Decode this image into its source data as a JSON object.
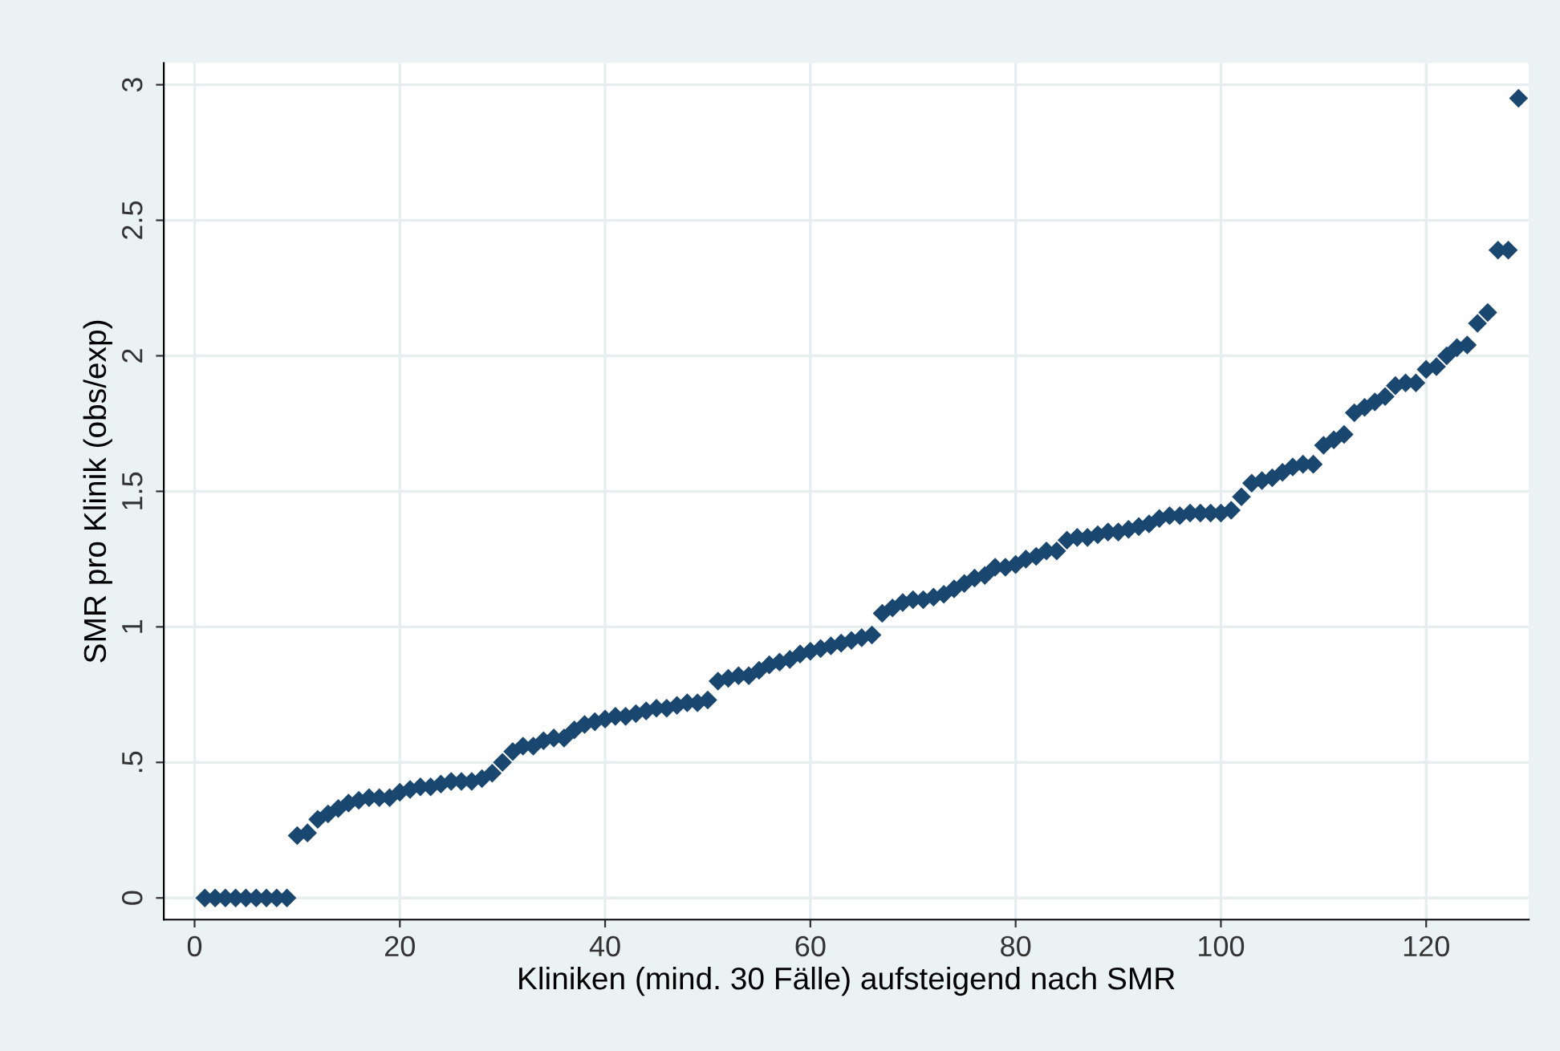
{
  "chart_data": {
    "type": "scatter",
    "xlabel": "Kliniken (mind. 30 Fälle) aufsteigend nach SMR",
    "ylabel": "SMR pro Klinik (obs/exp)",
    "x": [
      1,
      2,
      3,
      4,
      5,
      6,
      7,
      8,
      9,
      10,
      11,
      12,
      13,
      14,
      15,
      16,
      17,
      18,
      19,
      20,
      21,
      22,
      23,
      24,
      25,
      26,
      27,
      28,
      29,
      30,
      31,
      32,
      33,
      34,
      35,
      36,
      37,
      38,
      39,
      40,
      41,
      42,
      43,
      44,
      45,
      46,
      47,
      48,
      49,
      50,
      51,
      52,
      53,
      54,
      55,
      56,
      57,
      58,
      59,
      60,
      61,
      62,
      63,
      64,
      65,
      66,
      67,
      68,
      69,
      70,
      71,
      72,
      73,
      74,
      75,
      76,
      77,
      78,
      79,
      80,
      81,
      82,
      83,
      84,
      85,
      86,
      87,
      88,
      89,
      90,
      91,
      92,
      93,
      94,
      95,
      96,
      97,
      98,
      99,
      100,
      101,
      102,
      103,
      104,
      105,
      106,
      107,
      108,
      109,
      110,
      111,
      112,
      113,
      114,
      115,
      116,
      117,
      118,
      119,
      120,
      121,
      122,
      123,
      124,
      125,
      126,
      127,
      128,
      129
    ],
    "series": [
      {
        "color": "#1a476f",
        "values": [
          0,
          0,
          0,
          0,
          0,
          0,
          0,
          0,
          0,
          0.23,
          0.24,
          0.29,
          0.31,
          0.33,
          0.35,
          0.36,
          0.37,
          0.37,
          0.37,
          0.39,
          0.4,
          0.41,
          0.41,
          0.42,
          0.43,
          0.43,
          0.43,
          0.44,
          0.46,
          0.5,
          0.54,
          0.56,
          0.56,
          0.58,
          0.59,
          0.59,
          0.62,
          0.64,
          0.65,
          0.66,
          0.67,
          0.67,
          0.68,
          0.69,
          0.7,
          0.7,
          0.71,
          0.72,
          0.72,
          0.73,
          0.8,
          0.81,
          0.82,
          0.82,
          0.84,
          0.86,
          0.87,
          0.88,
          0.9,
          0.91,
          0.92,
          0.93,
          0.94,
          0.95,
          0.96,
          0.97,
          1.05,
          1.07,
          1.09,
          1.1,
          1.1,
          1.11,
          1.12,
          1.14,
          1.16,
          1.18,
          1.19,
          1.22,
          1.22,
          1.23,
          1.25,
          1.26,
          1.28,
          1.28,
          1.32,
          1.33,
          1.33,
          1.34,
          1.35,
          1.35,
          1.36,
          1.37,
          1.38,
          1.4,
          1.41,
          1.41,
          1.42,
          1.42,
          1.42,
          1.42,
          1.43,
          1.48,
          1.53,
          1.54,
          1.55,
          1.57,
          1.59,
          1.6,
          1.6,
          1.67,
          1.69,
          1.71,
          1.79,
          1.81,
          1.83,
          1.85,
          1.89,
          1.9,
          1.9,
          1.95,
          1.96,
          2.0,
          2.03,
          2.04,
          2.12,
          2.16,
          2.39,
          2.39,
          2.95
        ]
      }
    ],
    "xlim": [
      -3,
      130
    ],
    "ylim": [
      -0.08,
      3.08
    ],
    "xticks": [
      0,
      20,
      40,
      60,
      80,
      100,
      120
    ],
    "yticks": [
      0,
      {
        "value": 0.5,
        "label": ".5"
      },
      1,
      1.5,
      2,
      2.5,
      3
    ],
    "grid": true,
    "legend": false,
    "marker": "diamond"
  }
}
